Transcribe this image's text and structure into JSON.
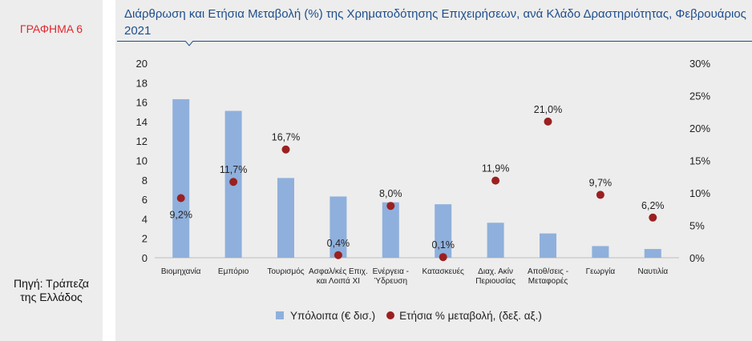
{
  "figure_label": "ΓΡΑΦΗΜΑ 6",
  "title": "Διάρθρωση και Ετήσια Μεταβολή (%) της Χρηματοδότησης Επιχειρήσεων, ανά Κλάδο Δραστηριότητας, Φεβρουάριος 2021",
  "source_lines": [
    "Πηγή: Τράπεζα",
    "της Ελλάδος"
  ],
  "colors": {
    "bar": "#8fb0dc",
    "dot": "#9b2020",
    "title": "#1f4e8c",
    "label_red": "#e0282e"
  },
  "chart_data": {
    "type": "bar",
    "categories": [
      [
        "Βιομηχανία"
      ],
      [
        "Εμπόριο"
      ],
      [
        "Τουρισμός"
      ],
      [
        "Ασφαλ/κές Επιχ.",
        "και Λοιπά ΧΙ"
      ],
      [
        "Ενέργεια -",
        "Ύδρευση"
      ],
      [
        "Κατασκευές"
      ],
      [
        "Διαχ. Ακίν",
        "Περιουσίας"
      ],
      [
        "Αποθ/σεις -",
        "Μεταφορές"
      ],
      [
        "Γεωργία"
      ],
      [
        "Ναυτιλία"
      ]
    ],
    "series": [
      {
        "name": "Υπόλοιπα (€ δισ.)",
        "type": "bar",
        "axis": "left",
        "values": [
          16.3,
          15.1,
          8.2,
          6.3,
          5.7,
          5.5,
          3.6,
          2.5,
          1.2,
          0.9
        ]
      },
      {
        "name": "Ετήσια % μεταβολή, (δεξ. αξ.)",
        "type": "scatter",
        "axis": "right",
        "values": [
          9.2,
          11.7,
          16.7,
          0.4,
          8.0,
          0.1,
          11.9,
          21.0,
          9.7,
          6.2
        ],
        "labels": [
          "9,2%",
          "11,7%",
          "16,7%",
          "0,4%",
          "8,0%",
          "0,1%",
          "11,9%",
          "21,0%",
          "9,7%",
          "6,2%"
        ],
        "label_position": [
          "below",
          "above",
          "above",
          "above",
          "above",
          "above",
          "above",
          "above",
          "above",
          "above"
        ]
      }
    ],
    "y_left": {
      "min": 0,
      "max": 20,
      "ticks": [
        "0",
        "2",
        "4",
        "6",
        "8",
        "10",
        "12",
        "14",
        "16",
        "18",
        "20"
      ]
    },
    "y_right": {
      "min": 0,
      "max": 30,
      "ticks": [
        "0%",
        "5%",
        "10%",
        "15%",
        "20%",
        "25%",
        "30%"
      ]
    },
    "grid": false,
    "legend_position": "bottom"
  }
}
